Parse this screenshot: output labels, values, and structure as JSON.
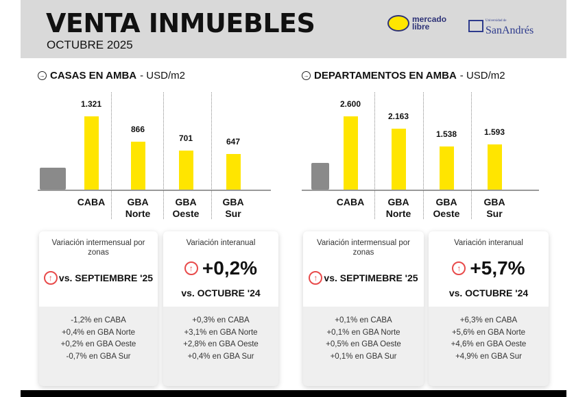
{
  "header": {
    "title": "VENTA INMUEBLES",
    "subtitle": "OCTUBRE 2025",
    "logos": [
      "mercado libre",
      "Universidad de San Andrés"
    ]
  },
  "sections": [
    {
      "title": "CASAS EN AMBA",
      "unit": "- USD/m2",
      "icon": "building-house-icon"
    },
    {
      "title": "DEPARTAMENTOS EN AMBA",
      "unit": "- USD/m2",
      "icon": "apartment-building-icon"
    }
  ],
  "chart_data": [
    {
      "type": "bar",
      "title": "CASAS EN AMBA - USD/m2",
      "categories": [
        "CABA",
        "GBA Norte",
        "GBA Oeste",
        "GBA Sur"
      ],
      "values": [
        1321,
        866,
        701,
        647
      ],
      "labels": [
        "1.321",
        "866",
        "701",
        "647"
      ],
      "color": "#ffe500"
    },
    {
      "type": "bar",
      "title": "DEPARTAMENTOS EN AMBA - USD/m2",
      "categories": [
        "CABA",
        "GBA Norte",
        "GBA Oeste",
        "GBA Sur"
      ],
      "values": [
        2600,
        2163,
        1538,
        1593
      ],
      "labels": [
        "2.600",
        "2.163",
        "1.538",
        "1.593"
      ],
      "color": "#ffe500"
    }
  ],
  "cards": [
    {
      "title": "Variación intermensual por zonas",
      "headline": "",
      "vs": "vs. SEPTIEMBRE '25",
      "items": [
        "-1,2% en CABA",
        "+0,4% en GBA Norte",
        "+0,2% en GBA Oeste",
        "-0,7% en GBA Sur"
      ]
    },
    {
      "title": "Variación interanual",
      "headline": "+0,2%",
      "vs": "vs. OCTUBRE '24",
      "items": [
        "+0,3% en CABA",
        "+3,1% en GBA Norte",
        "+2,8% en GBA Oeste",
        "+0,4% en GBA Sur"
      ]
    },
    {
      "title": "Variación intermensual por zonas",
      "headline": "",
      "vs": "vs. SEPTIMEBRE '25",
      "items": [
        "+0,1% en CABA",
        "+0,1% en GBA Norte",
        "+0,5% en GBA Oeste",
        "+0,1% en GBA Sur"
      ]
    },
    {
      "title": "Variación interanual",
      "headline": "+5,7%",
      "vs": "vs. OCTUBRE '24",
      "items": [
        "+6,3% en CABA",
        "+5,6% en GBA Norte",
        "+4,6% en GBA Oeste",
        "+4,9% en GBA Sur"
      ]
    }
  ],
  "colors": {
    "accent": "#ffe500",
    "up_arrow": "#e84a4a",
    "header_bg": "#d9d9d9"
  }
}
